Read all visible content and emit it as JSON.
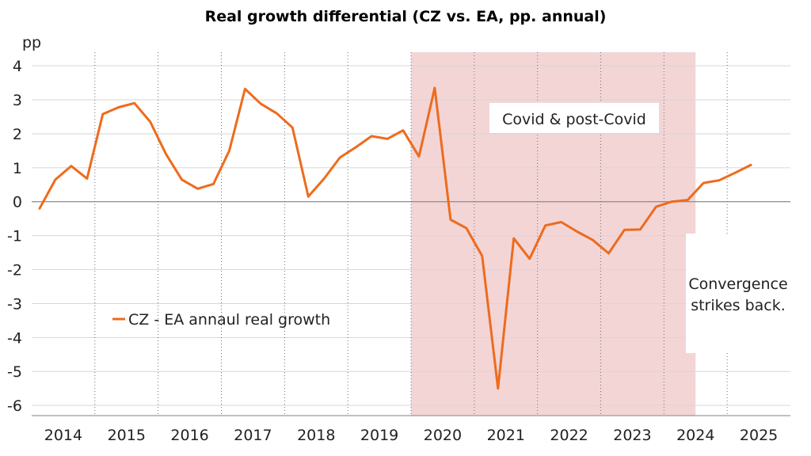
{
  "chart_data": {
    "type": "line",
    "title": "Real growth differential (CZ vs. EA, pp. annual)",
    "ylabel": "pp",
    "xlabel": "",
    "ylim": [
      -6.3,
      4.4
    ],
    "yticks": [
      4,
      3,
      2,
      1,
      0,
      -1,
      -2,
      -3,
      -4,
      -5,
      -6
    ],
    "x_categories": [
      "2014",
      "2015",
      "2016",
      "2017",
      "2018",
      "2019",
      "2020",
      "2021",
      "2022",
      "2023",
      "2024",
      "2025"
    ],
    "x_range": [
      2014.0,
      2026.0
    ],
    "grid": true,
    "legend": "left-center",
    "series": [
      {
        "name": "CZ - EA annaul real growth",
        "color": "#ee6b1d",
        "points": [
          [
            2014.125,
            -0.2
          ],
          [
            2014.375,
            0.65
          ],
          [
            2014.625,
            1.05
          ],
          [
            2014.875,
            0.68
          ],
          [
            2015.125,
            2.58
          ],
          [
            2015.375,
            2.78
          ],
          [
            2015.625,
            2.9
          ],
          [
            2015.875,
            2.35
          ],
          [
            2016.125,
            1.4
          ],
          [
            2016.375,
            0.65
          ],
          [
            2016.625,
            0.38
          ],
          [
            2016.875,
            0.52
          ],
          [
            2017.125,
            1.5
          ],
          [
            2017.375,
            3.32
          ],
          [
            2017.625,
            2.88
          ],
          [
            2017.875,
            2.6
          ],
          [
            2018.125,
            2.18
          ],
          [
            2018.375,
            0.15
          ],
          [
            2018.625,
            0.68
          ],
          [
            2018.875,
            1.3
          ],
          [
            2019.125,
            1.6
          ],
          [
            2019.375,
            1.93
          ],
          [
            2019.625,
            1.85
          ],
          [
            2019.875,
            2.1
          ],
          [
            2020.125,
            1.33
          ],
          [
            2020.375,
            3.35
          ],
          [
            2020.625,
            -0.53
          ],
          [
            2020.875,
            -0.78
          ],
          [
            2021.125,
            -1.6
          ],
          [
            2021.375,
            -5.5
          ],
          [
            2021.625,
            -1.08
          ],
          [
            2021.875,
            -1.68
          ],
          [
            2022.125,
            -0.7
          ],
          [
            2022.375,
            -0.6
          ],
          [
            2022.625,
            -0.88
          ],
          [
            2022.875,
            -1.13
          ],
          [
            2023.125,
            -1.52
          ],
          [
            2023.375,
            -0.83
          ],
          [
            2023.625,
            -0.82
          ],
          [
            2023.875,
            -0.15
          ],
          [
            2024.125,
            0.0
          ],
          [
            2024.375,
            0.05
          ],
          [
            2024.625,
            0.55
          ],
          [
            2024.875,
            0.63
          ],
          [
            2025.125,
            0.85
          ],
          [
            2025.375,
            1.08
          ]
        ]
      }
    ],
    "shaded_regions": [
      {
        "x_from": 2020.0,
        "x_to": 2024.5,
        "color": "#f3d5d6"
      }
    ],
    "annotations": [
      {
        "text": "Covid & post-Covid"
      },
      {
        "lines": [
          "Convergence",
          "strikes back."
        ]
      }
    ]
  }
}
